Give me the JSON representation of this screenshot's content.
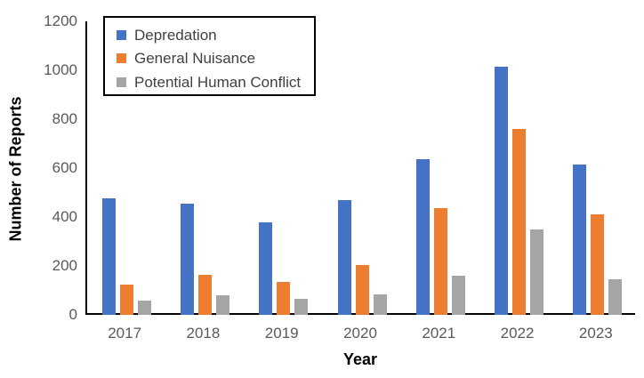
{
  "chart_data": {
    "type": "bar",
    "title": "",
    "xlabel": "Year",
    "ylabel": "Number of Reports",
    "categories": [
      "2017",
      "2018",
      "2019",
      "2020",
      "2021",
      "2022",
      "2023"
    ],
    "series": [
      {
        "name": "Depredation",
        "color": "#4472C4",
        "values": [
          475,
          455,
          380,
          470,
          635,
          1015,
          615
        ]
      },
      {
        "name": "General Nuisance",
        "color": "#ED7D31",
        "values": [
          125,
          165,
          135,
          205,
          435,
          760,
          410
        ]
      },
      {
        "name": "Potential Human Conflict",
        "color": "#A5A5A5",
        "values": [
          60,
          80,
          65,
          85,
          160,
          350,
          145
        ]
      }
    ],
    "ylim": [
      0,
      1200
    ],
    "y_ticks": [
      0,
      200,
      400,
      600,
      800,
      1000,
      1200
    ],
    "grid": "off",
    "legend_position": "top-left-inside"
  },
  "colors": {
    "axis_line": "#000000",
    "tick_label": "#595959",
    "legend_text": "#404040",
    "axis_title": "#000000",
    "background": "#FFFFFF"
  }
}
